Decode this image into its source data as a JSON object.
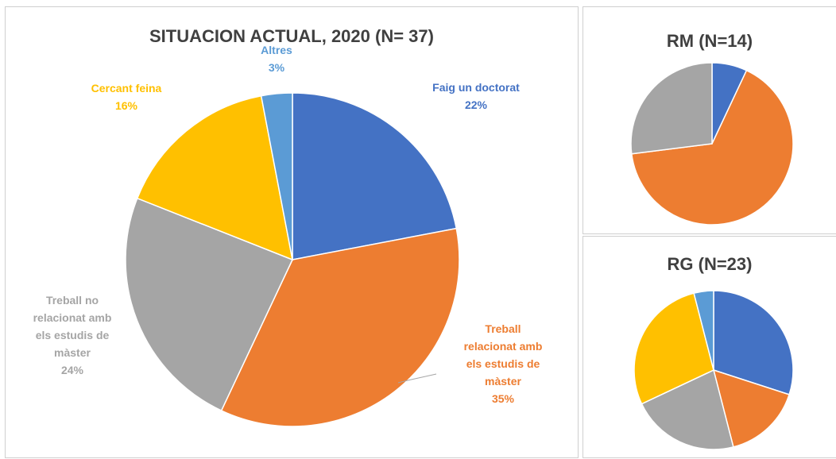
{
  "chart_data": [
    {
      "type": "pie",
      "title": "SITUACION ACTUAL, 2020 (N= 37)",
      "start_angle_deg": 0,
      "direction": "clockwise",
      "slices": [
        {
          "label": "Faig un doctorat",
          "percent_text": "22%",
          "value": 22,
          "color": "#4472C4"
        },
        {
          "label": "Treball relacionat amb els estudis de màster",
          "label_lines": [
            "Treball",
            "relacionat amb",
            "els estudis de",
            "màster"
          ],
          "percent_text": "35%",
          "value": 35,
          "color": "#ED7D31"
        },
        {
          "label": "Treball no relacionat amb els estudis de màster",
          "label_lines": [
            "Treball no",
            "relacionat amb",
            "els estudis de",
            "màster"
          ],
          "percent_text": "24%",
          "value": 24,
          "color": "#A5A5A5"
        },
        {
          "label": "Cercant feina",
          "percent_text": "16%",
          "value": 16,
          "color": "#FFC000"
        },
        {
          "label": "Altres",
          "percent_text": "3%",
          "value": 3,
          "color": "#5B9BD5"
        }
      ]
    },
    {
      "type": "pie",
      "title": "RM (N=14)",
      "start_angle_deg": 0,
      "direction": "clockwise",
      "slices": [
        {
          "value": 7,
          "color": "#4472C4"
        },
        {
          "value": 66,
          "color": "#ED7D31"
        },
        {
          "value": 27,
          "color": "#A5A5A5"
        }
      ]
    },
    {
      "type": "pie",
      "title": "RG (N=23)",
      "start_angle_deg": 0,
      "direction": "clockwise",
      "slices": [
        {
          "value": 30,
          "color": "#4472C4"
        },
        {
          "value": 16,
          "color": "#ED7D31"
        },
        {
          "value": 22,
          "color": "#A5A5A5"
        },
        {
          "value": 28,
          "color": "#FFC000"
        },
        {
          "value": 4,
          "color": "#5B9BD5"
        }
      ]
    }
  ]
}
